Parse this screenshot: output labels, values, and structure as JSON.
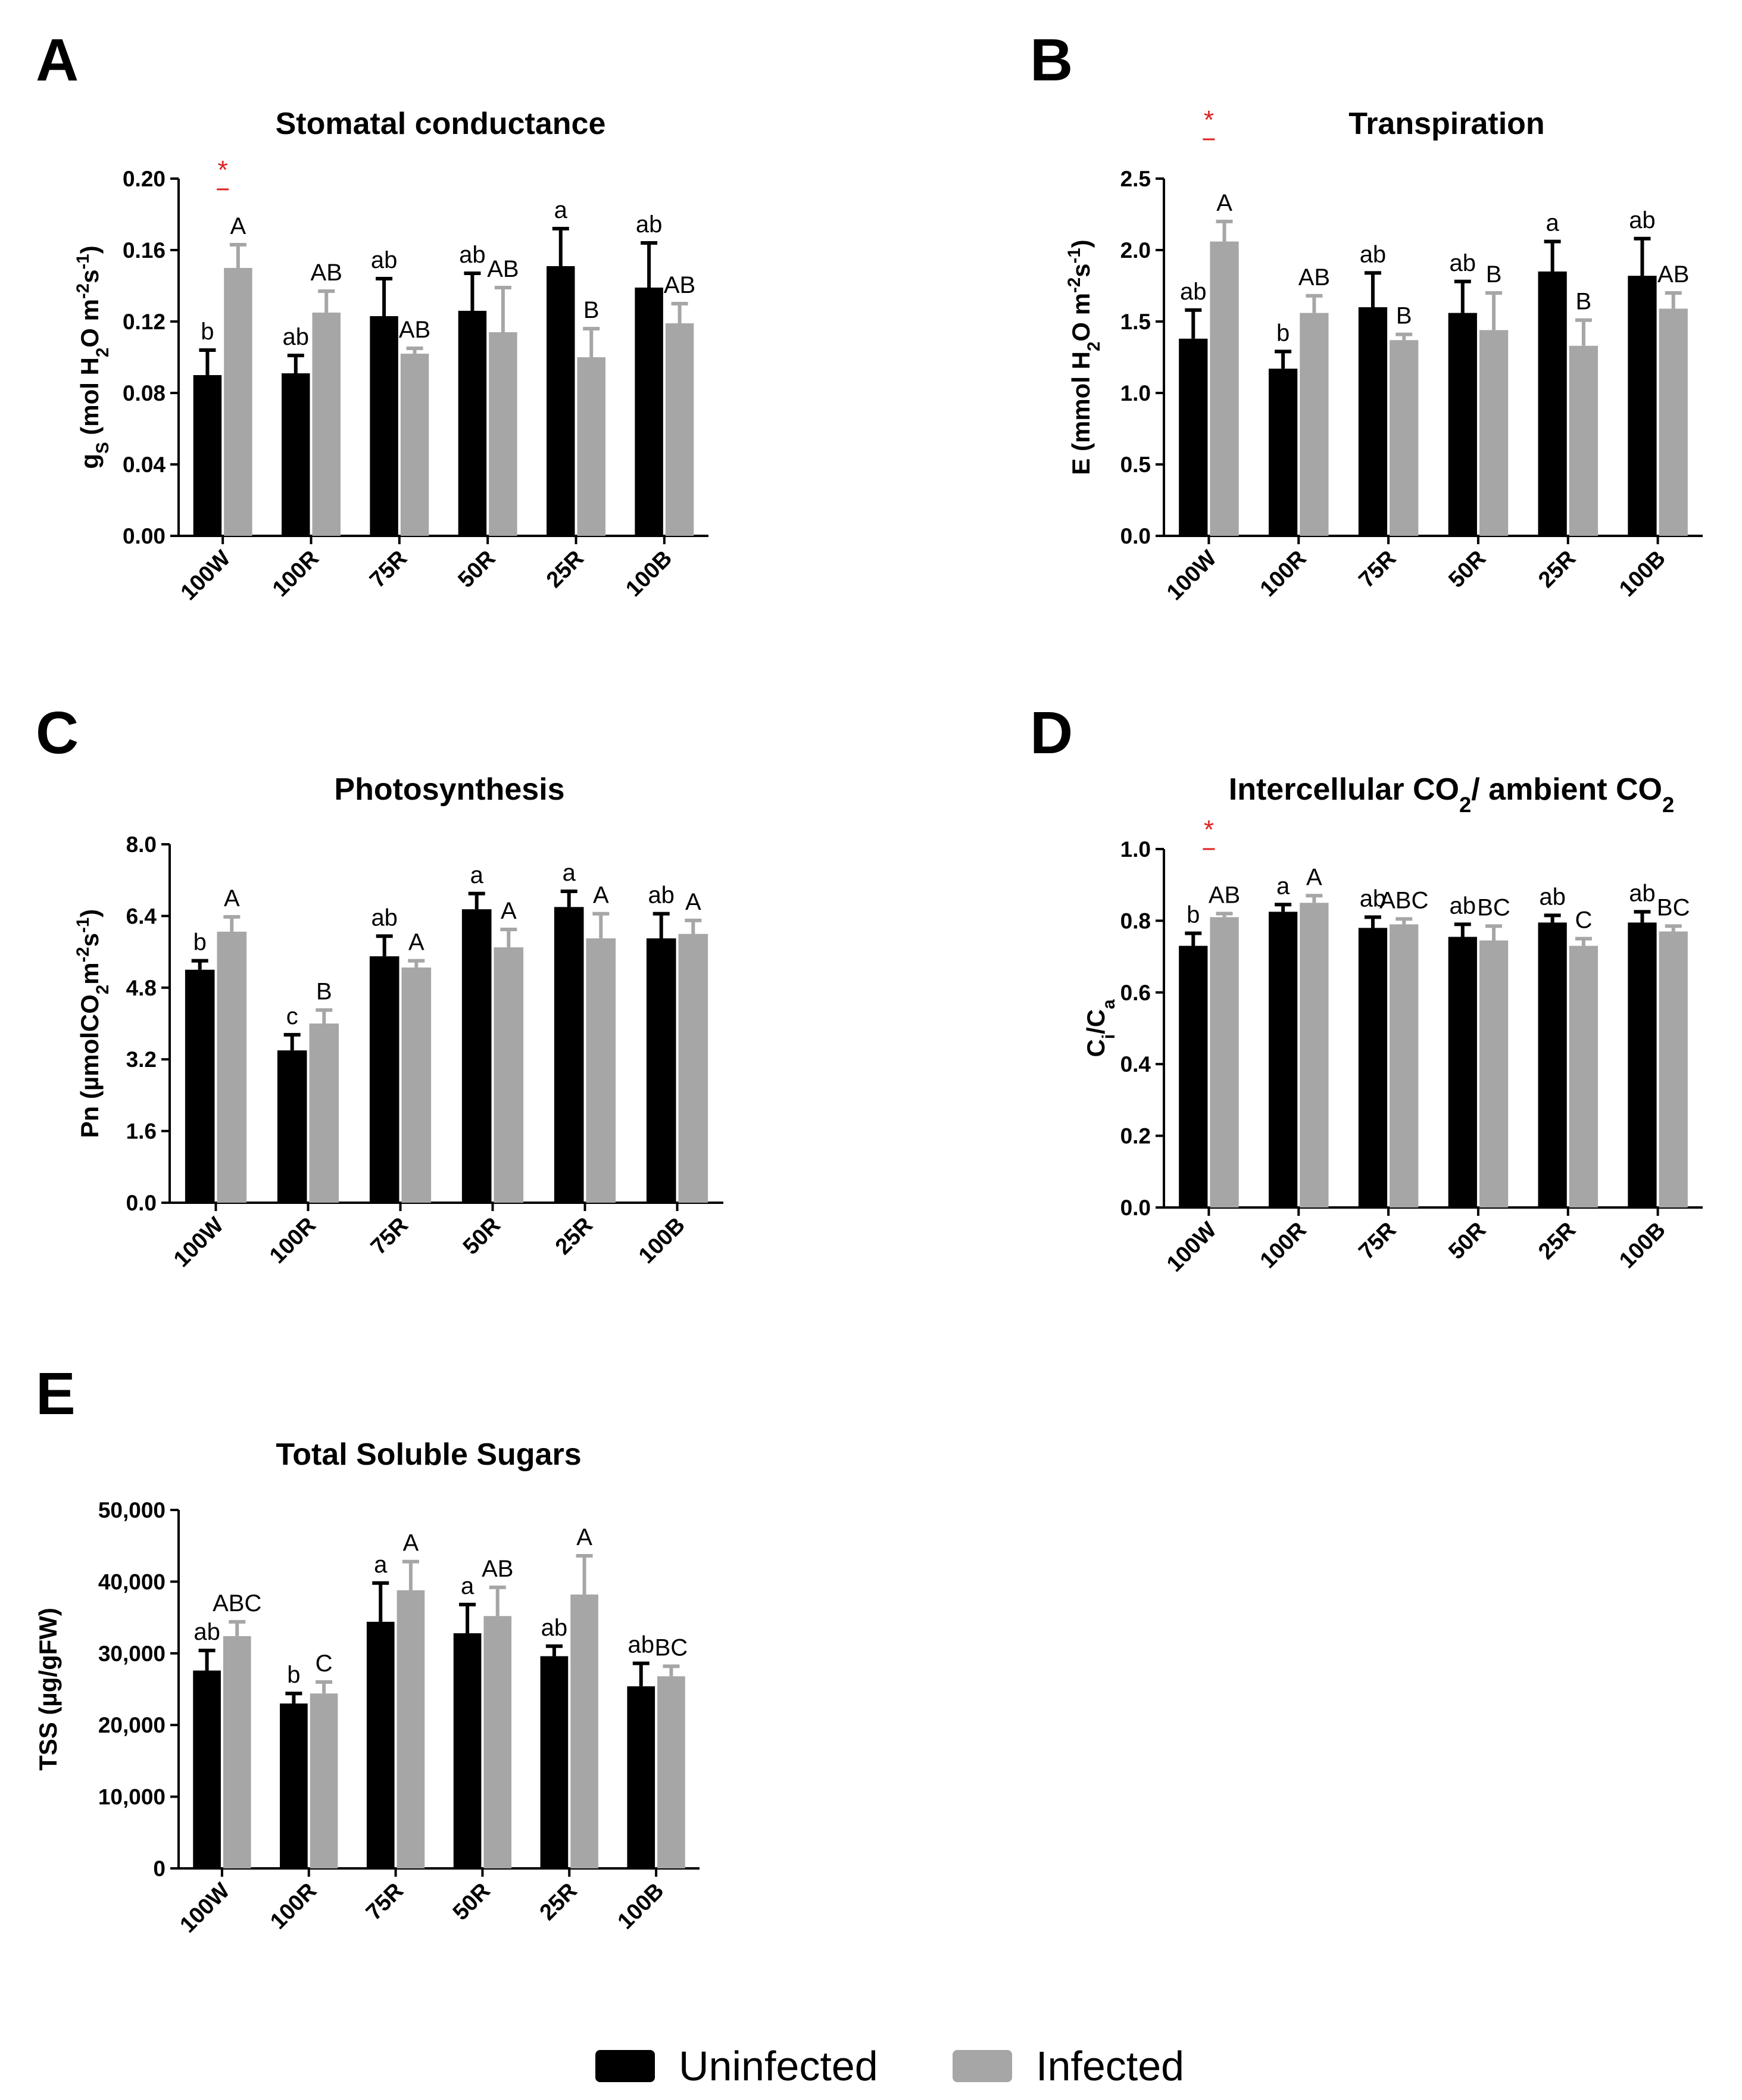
{
  "figure": {
    "legend": {
      "series": [
        {
          "name": "Uninfected",
          "color": "#000000"
        },
        {
          "name": "Infected",
          "color": "#a6a6a6"
        }
      ]
    }
  },
  "chart_data": [
    {
      "panel": "A",
      "type": "bar",
      "title": "Stomatal conductance",
      "ylabel": [
        "g",
        "S",
        " (mol H",
        "2",
        "O m",
        "-2",
        "s",
        "-1",
        ")"
      ],
      "categories": [
        "100W",
        "100R",
        "75R",
        "50R",
        "25R",
        "100B"
      ],
      "ylim": [
        0,
        0.2
      ],
      "yticks": [
        0.0,
        0.04,
        0.08,
        0.12,
        0.16,
        0.2
      ],
      "ytick_labels": [
        "0.00",
        "0.04",
        "0.08",
        "0.12",
        "0.16",
        "0.20"
      ],
      "series": [
        {
          "name": "Uninfected",
          "values": [
            0.09,
            0.091,
            0.123,
            0.126,
            0.151,
            0.139
          ],
          "errors": [
            0.014,
            0.01,
            0.021,
            0.021,
            0.021,
            0.025
          ],
          "labels": [
            "b",
            "ab",
            "ab",
            "ab",
            "a",
            "ab"
          ]
        },
        {
          "name": "Infected",
          "values": [
            0.15,
            0.125,
            0.102,
            0.114,
            0.1,
            0.119
          ],
          "errors": [
            0.013,
            0.012,
            0.003,
            0.025,
            0.016,
            0.011
          ],
          "labels": [
            "A",
            "AB",
            "AB",
            "AB",
            "B",
            "AB"
          ]
        }
      ],
      "annotations": [
        {
          "text": "*",
          "category": "100W",
          "value": 0.2
        }
      ]
    },
    {
      "panel": "B",
      "type": "bar",
      "title": "Transpiration",
      "ylabel": [
        "E (mmol H",
        "2",
        "O m",
        "-2",
        "s",
        "-1",
        ")"
      ],
      "categories": [
        "100W",
        "100R",
        "75R",
        "50R",
        "25R",
        "100B"
      ],
      "ylim": [
        0,
        2.5
      ],
      "yticks": [
        0.0,
        0.5,
        1.0,
        1.5,
        2.0,
        2.5
      ],
      "ytick_labels": [
        "0.0",
        "0.5",
        "1.0",
        "1.5",
        "2.0",
        "2.5"
      ],
      "series": [
        {
          "name": "Uninfected",
          "values": [
            1.38,
            1.17,
            1.6,
            1.56,
            1.85,
            1.82
          ],
          "errors": [
            0.2,
            0.12,
            0.24,
            0.22,
            0.21,
            0.26
          ],
          "labels": [
            "ab",
            "b",
            "ab",
            "ab",
            "a",
            "ab"
          ]
        },
        {
          "name": "Infected",
          "values": [
            2.06,
            1.56,
            1.37,
            1.44,
            1.33,
            1.59
          ],
          "errors": [
            0.14,
            0.12,
            0.04,
            0.26,
            0.18,
            0.11
          ],
          "labels": [
            "A",
            "AB",
            "B",
            "B",
            "B",
            "AB"
          ]
        }
      ],
      "annotations": [
        {
          "text": "*",
          "category": "100W",
          "value": 2.85
        }
      ]
    },
    {
      "panel": "C",
      "type": "bar",
      "title": "Photosynthesis",
      "ylabel": [
        "Pn (µmolCO",
        "2",
        "m",
        "-2",
        "s",
        "-1",
        ")"
      ],
      "categories": [
        "100W",
        "100R",
        "75R",
        "50R",
        "25R",
        "100B"
      ],
      "ylim": [
        0,
        8.0
      ],
      "yticks": [
        0.0,
        1.6,
        3.2,
        4.8,
        6.4,
        8.0
      ],
      "ytick_labels": [
        "0.0",
        "1.6",
        "3.2",
        "4.8",
        "6.4",
        "8.0"
      ],
      "series": [
        {
          "name": "Uninfected",
          "values": [
            5.2,
            3.4,
            5.5,
            6.55,
            6.6,
            5.9
          ],
          "errors": [
            0.2,
            0.35,
            0.45,
            0.35,
            0.35,
            0.55
          ],
          "labels": [
            "b",
            "c",
            "ab",
            "a",
            "a",
            "ab"
          ]
        },
        {
          "name": "Infected",
          "values": [
            6.05,
            4.0,
            5.25,
            5.7,
            5.9,
            6.0
          ],
          "errors": [
            0.33,
            0.3,
            0.15,
            0.4,
            0.55,
            0.3
          ],
          "labels": [
            "A",
            "B",
            "A",
            "A",
            "A",
            "A"
          ]
        }
      ],
      "annotations": []
    },
    {
      "panel": "D",
      "type": "bar",
      "title": [
        "Intercellular CO",
        "2",
        "/ ambient CO",
        "2"
      ],
      "ylabel": [
        "C",
        "i",
        "/C",
        "a"
      ],
      "categories": [
        "100W",
        "100R",
        "75R",
        "50R",
        "25R",
        "100B"
      ],
      "ylim": [
        0,
        1.0
      ],
      "yticks": [
        0.0,
        0.2,
        0.4,
        0.6,
        0.8,
        1.0
      ],
      "ytick_labels": [
        "0.0",
        "0.2",
        "0.4",
        "0.6",
        "0.8",
        "1.0"
      ],
      "series": [
        {
          "name": "Uninfected",
          "values": [
            0.73,
            0.825,
            0.78,
            0.755,
            0.795,
            0.795
          ],
          "errors": [
            0.035,
            0.02,
            0.03,
            0.035,
            0.02,
            0.03
          ],
          "labels": [
            "b",
            "a",
            "ab",
            "ab",
            "ab",
            "ab"
          ]
        },
        {
          "name": "Infected",
          "values": [
            0.81,
            0.85,
            0.79,
            0.745,
            0.73,
            0.77
          ],
          "errors": [
            0.01,
            0.02,
            0.015,
            0.04,
            0.02,
            0.015
          ],
          "labels": [
            "AB",
            "A",
            "ABC",
            "BC",
            "C",
            "BC"
          ]
        }
      ],
      "annotations": [
        {
          "text": "*",
          "category": "100W",
          "value": 1.03
        }
      ]
    },
    {
      "panel": "E",
      "type": "bar",
      "title": "Total Soluble Sugars",
      "ylabel": [
        "TSS (µg/gFW)"
      ],
      "categories": [
        "100W",
        "100R",
        "75R",
        "50R",
        "25R",
        "100B"
      ],
      "ylim": [
        0,
        50000
      ],
      "yticks": [
        0,
        10000,
        20000,
        30000,
        40000,
        50000
      ],
      "ytick_labels": [
        "0",
        "10,000",
        "20,000",
        "30,000",
        "40,000",
        "50,000"
      ],
      "series": [
        {
          "name": "Uninfected",
          "values": [
            27600,
            23000,
            34400,
            32800,
            29600,
            25400
          ],
          "errors": [
            2800,
            1400,
            5400,
            4000,
            1400,
            3200
          ],
          "labels": [
            "ab",
            "b",
            "a",
            "a",
            "ab",
            "ab"
          ]
        },
        {
          "name": "Infected",
          "values": [
            32400,
            24400,
            38800,
            35200,
            38200,
            26800
          ],
          "errors": [
            2000,
            1600,
            4000,
            4000,
            5400,
            1400
          ],
          "labels": [
            "ABC",
            "C",
            "A",
            "AB",
            "A",
            "BC"
          ]
        }
      ],
      "annotations": []
    }
  ]
}
